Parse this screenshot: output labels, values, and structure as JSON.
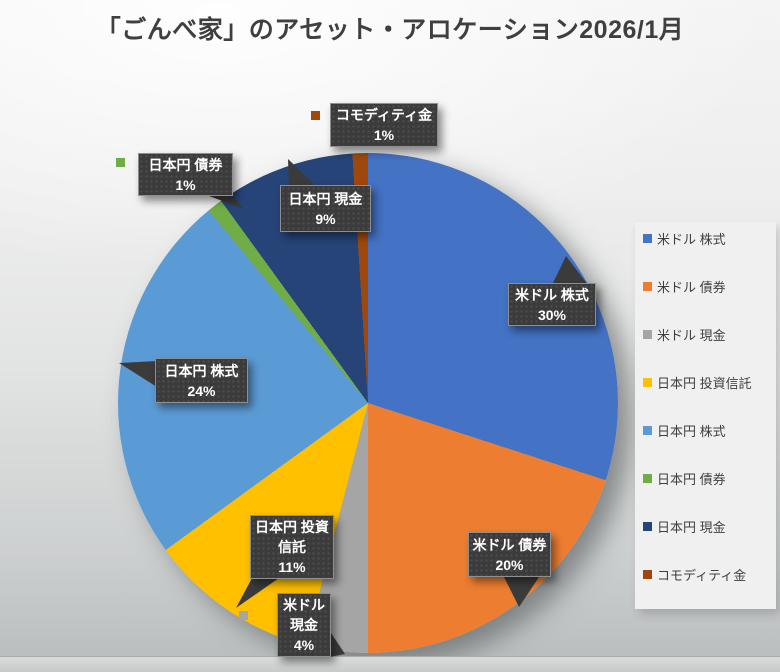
{
  "title": "「ごんべ家」のアセット・アロケーション2026/1月",
  "chart_data": {
    "type": "pie",
    "title": "「ごんべ家」のアセット・アロケーション2026/1月",
    "start_angle_deg": 0,
    "direction": "clockwise",
    "legend_position": "right",
    "unit": "%",
    "series": [
      {
        "label": "米ドル 株式",
        "value": 30,
        "color": "#4472C4"
      },
      {
        "label": "米ドル 債券",
        "value": 20,
        "color": "#ED7D31"
      },
      {
        "label": "米ドル 現金",
        "value": 4,
        "color": "#A5A5A5"
      },
      {
        "label": "日本円 投資信託",
        "value": 11,
        "color": "#FFC000"
      },
      {
        "label": "日本円 株式",
        "value": 24,
        "color": "#5B9BD5"
      },
      {
        "label": "日本円 債券",
        "value": 1,
        "color": "#70AD47"
      },
      {
        "label": "日本円 現金",
        "value": 9,
        "color": "#264478"
      },
      {
        "label": "コモディティ金",
        "value": 1,
        "color": "#9E480E"
      }
    ]
  },
  "legend": {
    "items": [
      {
        "label": "米ドル 株式",
        "color": "#4472C4"
      },
      {
        "label": "米ドル 債券",
        "color": "#ED7D31"
      },
      {
        "label": "米ドル 現金",
        "color": "#A5A5A5"
      },
      {
        "label": "日本円 投資信託",
        "color": "#FFC000"
      },
      {
        "label": "日本円 株式",
        "color": "#5B9BD5"
      },
      {
        "label": "日本円 債券",
        "color": "#70AD47"
      },
      {
        "label": "日本円 現金",
        "color": "#264478"
      },
      {
        "label": "コモディティ金",
        "color": "#9E480E"
      }
    ]
  },
  "callouts": [
    {
      "id": "usd_stock",
      "lines": [
        "米ドル 株式"
      ],
      "pct": "30%"
    },
    {
      "id": "usd_bond",
      "lines": [
        "米ドル 債券"
      ],
      "pct": "20%"
    },
    {
      "id": "usd_cash",
      "lines": [
        "米ドル",
        "現金"
      ],
      "pct": "4%",
      "key_color": "#A5A5A5"
    },
    {
      "id": "jpy_fund",
      "lines": [
        "日本円 投資",
        "信託"
      ],
      "pct": "11%"
    },
    {
      "id": "jpy_stock",
      "lines": [
        "日本円 株式"
      ],
      "pct": "24%"
    },
    {
      "id": "jpy_bond",
      "lines": [
        "日本円 債券"
      ],
      "pct": "1%",
      "key_color": "#70AD47"
    },
    {
      "id": "jpy_cash",
      "lines": [
        "日本円 現金"
      ],
      "pct": "9%"
    },
    {
      "id": "commodity",
      "lines": [
        "コモディティ金"
      ],
      "pct": "1%",
      "key_color": "#9E480E"
    }
  ]
}
